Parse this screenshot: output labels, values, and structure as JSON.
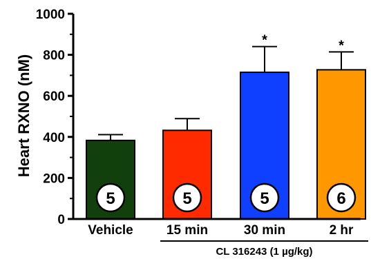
{
  "chart_data": {
    "type": "bar",
    "ylabel": "Heart RXNO (nM)",
    "ylim": [
      0,
      1000
    ],
    "yticks": [
      "0",
      "200",
      "400",
      "600",
      "800",
      "1000"
    ],
    "categories": [
      "Vehicle",
      "15 min",
      "30 min",
      "2 hr"
    ],
    "values": [
      383,
      432,
      715,
      727
    ],
    "errors": [
      28,
      57,
      125,
      87
    ],
    "colors": [
      "#11400c",
      "#ff2a00",
      "#1040ff",
      "#ff9800"
    ],
    "n_labels": [
      "5",
      "5",
      "5",
      "6"
    ],
    "significance": [
      "",
      "",
      "*",
      "*"
    ],
    "group_label": "CL 316243 (1 µg/kg)",
    "group_spans": [
      "15 min",
      "2 hr"
    ]
  }
}
